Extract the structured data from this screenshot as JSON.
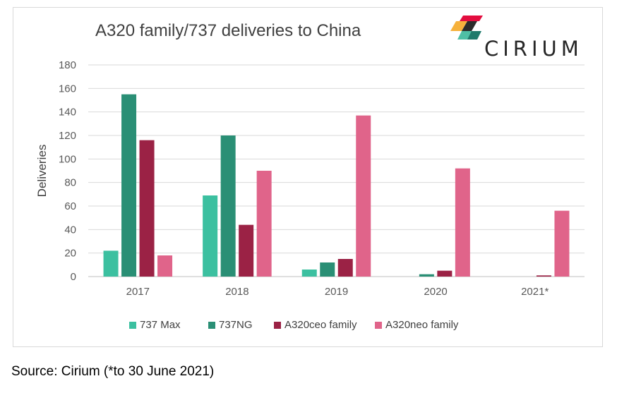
{
  "title": "A320 family/737 deliveries to China",
  "logo": {
    "text": "CIRIUM",
    "colors": [
      "#e30d3f",
      "#f6b13c",
      "#4fbfa5",
      "#1f7a6b",
      "#2b2b2b"
    ]
  },
  "source": "Source: Cirium (*to 30 June 2021)",
  "chart_data": {
    "type": "bar",
    "title": "A320 family/737 deliveries to China",
    "xlabel": "",
    "ylabel": "Deliveries",
    "categories": [
      "2017",
      "2018",
      "2019",
      "2020",
      "2021*"
    ],
    "ylim": [
      0,
      180
    ],
    "yticks": [
      "0",
      "20",
      "40",
      "60",
      "80",
      "100",
      "120",
      "140",
      "160",
      "180"
    ],
    "grid": true,
    "legend_position": "bottom",
    "series": [
      {
        "name": "737 Max",
        "color": "#3cc0a0",
        "values": [
          22,
          69,
          6,
          0,
          0
        ]
      },
      {
        "name": "737NG",
        "color": "#2a8f75",
        "values": [
          155,
          120,
          12,
          2,
          0
        ]
      },
      {
        "name": "A320ceo family",
        "color": "#9b2245",
        "values": [
          116,
          44,
          15,
          5,
          1
        ]
      },
      {
        "name": "A320neo family",
        "color": "#e0648a",
        "values": [
          18,
          90,
          137,
          92,
          56
        ]
      }
    ]
  }
}
